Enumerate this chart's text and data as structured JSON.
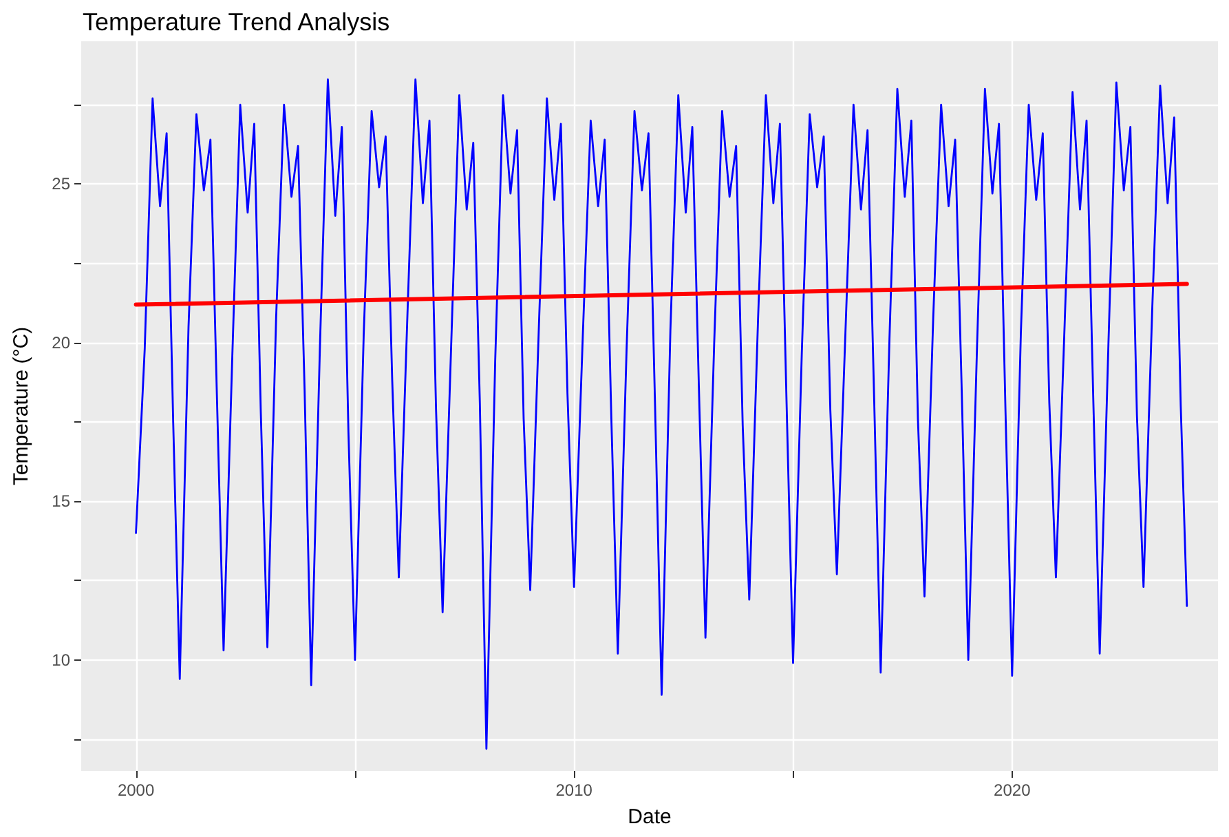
{
  "chart_data": {
    "type": "line",
    "title": "Temperature Trend Analysis",
    "xlabel": "Date",
    "ylabel": "Temperature (°C)",
    "x": [
      2000,
      2000.2,
      2000.38,
      2000.55,
      2000.7,
      2000.85,
      2001,
      2001.2,
      2001.38,
      2001.55,
      2001.7,
      2001.85,
      2002,
      2002.2,
      2002.38,
      2002.55,
      2002.7,
      2002.85,
      2003,
      2003.2,
      2003.38,
      2003.55,
      2003.7,
      2003.85,
      2004,
      2004.2,
      2004.38,
      2004.55,
      2004.7,
      2004.85,
      2005,
      2005.2,
      2005.38,
      2005.55,
      2005.7,
      2005.85,
      2006,
      2006.2,
      2006.38,
      2006.55,
      2006.7,
      2006.85,
      2007,
      2007.2,
      2007.38,
      2007.55,
      2007.7,
      2007.85,
      2008,
      2008.2,
      2008.38,
      2008.55,
      2008.7,
      2008.85,
      2009,
      2009.2,
      2009.38,
      2009.55,
      2009.7,
      2009.85,
      2010,
      2010.2,
      2010.38,
      2010.55,
      2010.7,
      2010.85,
      2011,
      2011.2,
      2011.38,
      2011.55,
      2011.7,
      2011.85,
      2012,
      2012.2,
      2012.38,
      2012.55,
      2012.7,
      2012.85,
      2013,
      2013.2,
      2013.38,
      2013.55,
      2013.7,
      2013.85,
      2014,
      2014.2,
      2014.38,
      2014.55,
      2014.7,
      2014.85,
      2015,
      2015.2,
      2015.38,
      2015.55,
      2015.7,
      2015.85,
      2016,
      2016.2,
      2016.38,
      2016.55,
      2016.7,
      2016.85,
      2017,
      2017.2,
      2017.38,
      2017.55,
      2017.7,
      2017.85,
      2018,
      2018.2,
      2018.38,
      2018.55,
      2018.7,
      2018.85,
      2019,
      2019.2,
      2019.38,
      2019.55,
      2019.7,
      2019.85,
      2020,
      2020.2,
      2020.38,
      2020.55,
      2020.7,
      2020.85,
      2021,
      2021.2,
      2021.38,
      2021.55,
      2021.7,
      2021.85,
      2022,
      2022.2,
      2022.38,
      2022.55,
      2022.7,
      2022.85,
      2023,
      2023.2,
      2023.38,
      2023.55,
      2023.7,
      2023.85,
      2023.99
    ],
    "series": [
      {
        "color": "#0000ff",
        "values": [
          14,
          19.8,
          27.7,
          24.3,
          26.6,
          17.5,
          9.4,
          20.5,
          27.2,
          24.8,
          26.4,
          18.2,
          10.3,
          19.6,
          27.5,
          24.1,
          26.9,
          17.8,
          10.4,
          20.8,
          27.5,
          24.6,
          26.2,
          18.5,
          9.2,
          19.9,
          28.3,
          24.0,
          26.8,
          17.2,
          10.0,
          20.3,
          27.3,
          24.9,
          26.5,
          18.8,
          12.6,
          21.0,
          28.3,
          24.4,
          27.0,
          17.9,
          11.5,
          20.1,
          27.8,
          24.2,
          26.3,
          18.1,
          7.2,
          19.4,
          27.8,
          24.7,
          26.7,
          17.6,
          12.2,
          20.6,
          27.7,
          24.5,
          26.9,
          18.4,
          12.3,
          20.2,
          27.0,
          24.3,
          26.4,
          17.7,
          10.2,
          19.8,
          27.3,
          24.8,
          26.6,
          18.0,
          8.9,
          20.4,
          27.8,
          24.1,
          26.8,
          18.6,
          10.7,
          20.0,
          27.3,
          24.6,
          26.2,
          17.4,
          11.9,
          20.7,
          27.8,
          24.4,
          26.9,
          18.2,
          9.9,
          19.7,
          27.2,
          24.9,
          26.5,
          17.9,
          12.7,
          20.5,
          27.5,
          24.2,
          26.7,
          18.3,
          9.6,
          20.1,
          28.0,
          24.6,
          27.0,
          17.6,
          12.0,
          20.8,
          27.5,
          24.3,
          26.4,
          18.5,
          10.0,
          19.9,
          28.0,
          24.7,
          26.9,
          17.8,
          9.5,
          20.3,
          27.5,
          24.5,
          26.6,
          18.1,
          12.6,
          20.6,
          27.9,
          24.2,
          27.0,
          18.4,
          10.2,
          20.0,
          28.2,
          24.8,
          26.8,
          17.7,
          12.3,
          21.1,
          28.1,
          24.4,
          27.1,
          18.0,
          11.7
        ]
      },
      {
        "color": "#ff0000",
        "x": [
          2000,
          2023.99
        ],
        "values": [
          21.2,
          21.85
        ]
      }
    ],
    "xlim": [
      1998.75,
      2024.7
    ],
    "xticks": [
      2000,
      {
        "value": 2005,
        "label": null
      },
      2010,
      {
        "value": 2015,
        "label": null
      },
      2020
    ],
    "ylim": [
      6.5,
      29.5
    ],
    "yticks": [
      {
        "value": 7.5,
        "label": null
      },
      10,
      {
        "value": 12.5,
        "label": null
      },
      15,
      {
        "value": 17.5,
        "label": null
      },
      20,
      {
        "value": 22.5,
        "label": null
      },
      25,
      {
        "value": 27.5,
        "label": null
      }
    ],
    "grid": true,
    "marker": "none",
    "line_style": "solid"
  }
}
